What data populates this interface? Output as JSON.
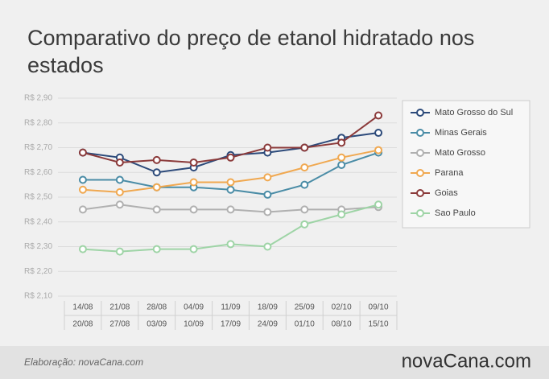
{
  "chart_data": {
    "type": "line",
    "title": "Comparativo do preço de etanol hidratado nos estados",
    "categories": [
      [
        "14/08",
        "20/08"
      ],
      [
        "21/08",
        "27/08"
      ],
      [
        "28/08",
        "03/09"
      ],
      [
        "04/09",
        "10/09"
      ],
      [
        "11/09",
        "17/09"
      ],
      [
        "18/09",
        "24/09"
      ],
      [
        "25/09",
        "01/10"
      ],
      [
        "02/10",
        "08/10"
      ],
      [
        "09/10",
        "15/10"
      ]
    ],
    "ylim": [
      2.1,
      2.9
    ],
    "yticks": [
      {
        "value": 2.1,
        "label": "R$ 2,10"
      },
      {
        "value": 2.2,
        "label": "R$ 2,20"
      },
      {
        "value": 2.3,
        "label": "R$ 2,30"
      },
      {
        "value": 2.4,
        "label": "R$ 2,40"
      },
      {
        "value": 2.5,
        "label": "R$ 2,50"
      },
      {
        "value": 2.6,
        "label": "R$ 2,60"
      },
      {
        "value": 2.7,
        "label": "R$ 2,70"
      },
      {
        "value": 2.8,
        "label": "R$ 2,80"
      },
      {
        "value": 2.9,
        "label": "R$ 2,90"
      }
    ],
    "grid": true,
    "legend": "right",
    "series": [
      {
        "name": "Mato Grosso do Sul",
        "color": "#2c4a7a",
        "values": [
          2.68,
          2.66,
          2.6,
          2.62,
          2.67,
          2.68,
          2.7,
          2.74,
          2.76
        ]
      },
      {
        "name": "Minas Gerais",
        "color": "#4a8ca6",
        "values": [
          2.57,
          2.57,
          2.54,
          2.54,
          2.53,
          2.51,
          2.55,
          2.63,
          2.68
        ]
      },
      {
        "name": "Mato Grosso",
        "color": "#b0b0b0",
        "values": [
          2.45,
          2.47,
          2.45,
          2.45,
          2.45,
          2.44,
          2.45,
          2.45,
          2.46
        ]
      },
      {
        "name": "Parana",
        "color": "#f0a850",
        "values": [
          2.53,
          2.52,
          2.54,
          2.56,
          2.56,
          2.58,
          2.62,
          2.66,
          2.69
        ]
      },
      {
        "name": "Goias",
        "color": "#8b3a3a",
        "values": [
          2.68,
          2.64,
          2.65,
          2.64,
          2.66,
          2.7,
          2.7,
          2.72,
          2.83
        ]
      },
      {
        "name": "Sao Paulo",
        "color": "#9ed4a6",
        "values": [
          2.29,
          2.28,
          2.29,
          2.29,
          2.31,
          2.3,
          2.39,
          2.43,
          2.47
        ]
      }
    ]
  },
  "footer": {
    "credit": "Elaboração: novaCana.com",
    "logo": "novaCana.com"
  }
}
